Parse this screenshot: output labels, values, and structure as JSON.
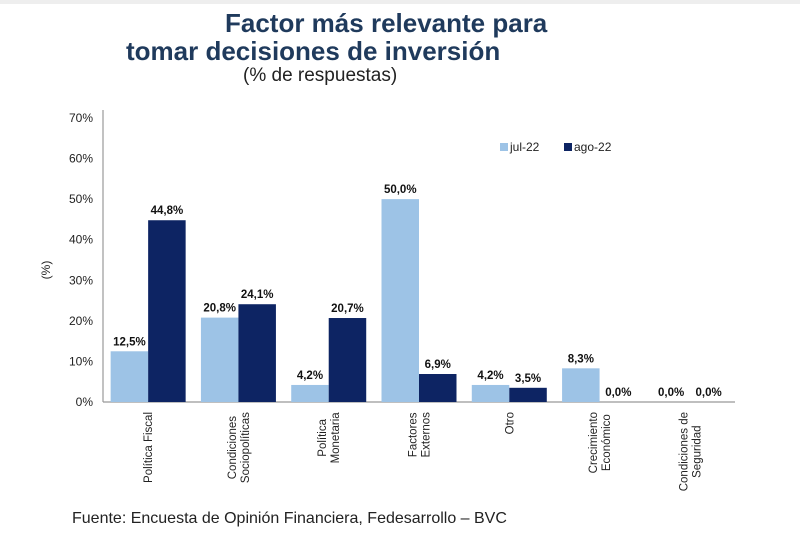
{
  "title_line1": "Factor más relevante para",
  "title_line2": "tomar decisiones de inversión",
  "subtitle": "(% de respuestas)",
  "source": "Fuente: Encuesta de Opinión Financiera, Fedesarrollo – BVC",
  "chart_data": {
    "type": "bar",
    "title": "Factor más relevante para tomar decisiones de inversión",
    "subtitle": "(% de respuestas)",
    "xlabel": "",
    "ylabel": "(%)",
    "ylim": [
      0,
      70
    ],
    "yticks": [
      "0%",
      "10%",
      "20%",
      "30%",
      "40%",
      "50%",
      "60%",
      "70%"
    ],
    "ytick_values": [
      0,
      10,
      20,
      30,
      40,
      50,
      60,
      70
    ],
    "grid": false,
    "legend_position": "top-right",
    "categories": [
      [
        "Política Fiscal"
      ],
      [
        "Condiciones",
        "Sociopolíticas"
      ],
      [
        "Política",
        "Monetaria"
      ],
      [
        "Factores",
        "Externos"
      ],
      [
        "Otro"
      ],
      [
        "Crecimiento",
        "Económico"
      ],
      [
        "Condiciones de",
        "Seguridad"
      ]
    ],
    "series": [
      {
        "name": "jul-22",
        "color": "#9dc3e6",
        "values": [
          12.5,
          20.8,
          4.2,
          50.0,
          4.2,
          8.3,
          0.0
        ],
        "labels": [
          "12,5%",
          "20,8%",
          "4,2%",
          "50,0%",
          "4,2%",
          "8,3%",
          "0,0%"
        ]
      },
      {
        "name": "ago-22",
        "color": "#0d2463",
        "values": [
          44.8,
          24.1,
          20.7,
          6.9,
          3.5,
          0.0,
          0.0
        ],
        "labels": [
          "44,8%",
          "24,1%",
          "20,7%",
          "6,9%",
          "3,5%",
          "0,0%",
          "0,0%"
        ]
      }
    ]
  }
}
